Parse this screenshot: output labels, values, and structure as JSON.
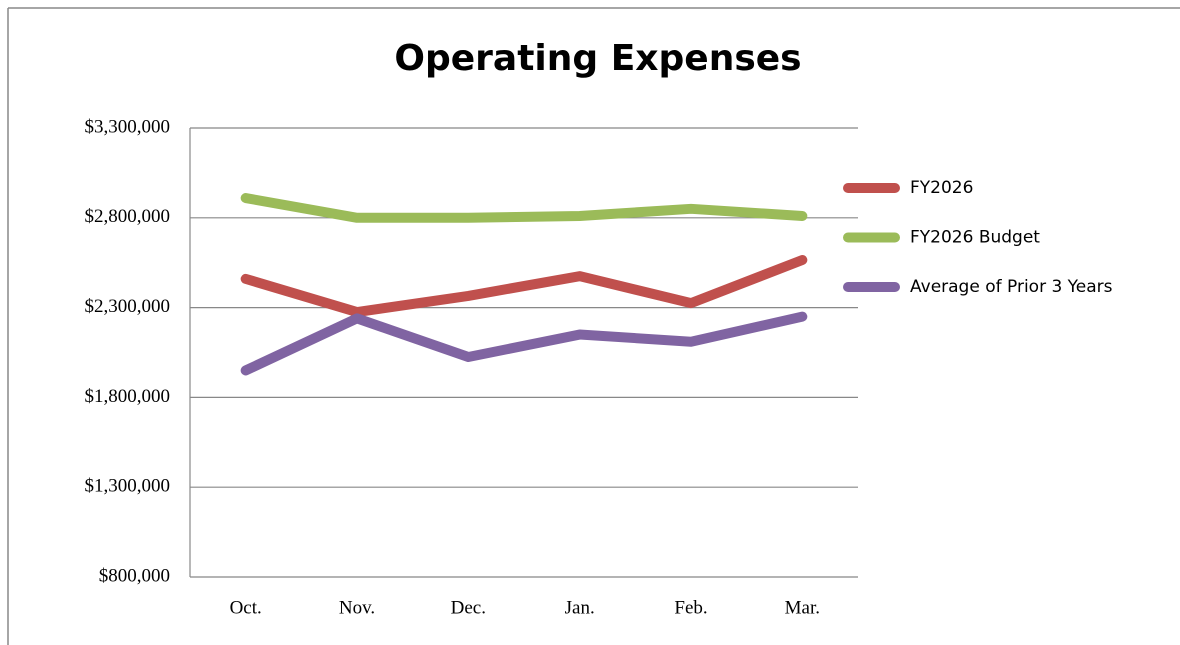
{
  "chart_data": {
    "type": "line",
    "title": "Operating Expenses",
    "categories": [
      "Oct.",
      "Nov.",
      "Dec.",
      "Jan.",
      "Feb.",
      "Mar."
    ],
    "series": [
      {
        "name": "FY2026",
        "color": "#c0504d",
        "values": [
          2460000,
          2275000,
          2365000,
          2475000,
          2325000,
          2565000
        ]
      },
      {
        "name": "FY2026 Budget",
        "color": "#9bbb59",
        "values": [
          2910000,
          2800000,
          2800000,
          2810000,
          2850000,
          2810000
        ]
      },
      {
        "name": "Average of Prior 3 Years",
        "color": "#8064a2",
        "values": [
          1950000,
          2240000,
          2025000,
          2150000,
          2110000,
          2250000
        ]
      }
    ],
    "ylim": [
      800000,
      3300000
    ],
    "yticks": [
      {
        "value": 800000,
        "label": "$800,000"
      },
      {
        "value": 1300000,
        "label": "$1,300,000"
      },
      {
        "value": 1800000,
        "label": "$1,800,000"
      },
      {
        "value": 2300000,
        "label": "$2,300,000"
      },
      {
        "value": 2800000,
        "label": "$2,800,000"
      },
      {
        "value": 3300000,
        "label": "$3,300,000"
      }
    ],
    "grid": true,
    "legend": "right"
  }
}
